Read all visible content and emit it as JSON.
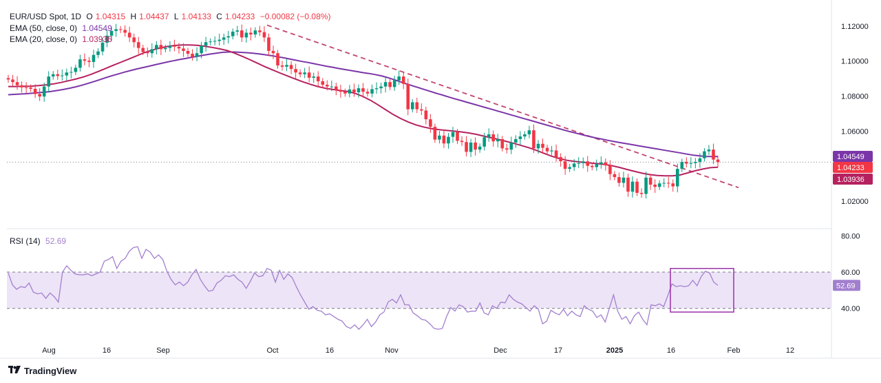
{
  "legend": {
    "symbol": "EUR/USD Spot, 1D",
    "ohlc": {
      "o_label": "O",
      "o": "1.04315",
      "h_label": "H",
      "h": "1.04437",
      "l_label": "L",
      "l": "1.04133",
      "c_label": "C",
      "c": "1.04233",
      "change": "−0.00082 (−0.08%)"
    },
    "ema50_label": "EMA (50, close, 0)",
    "ema50_value": "1.04549",
    "ema20_label": "EMA (20, close, 0)",
    "ema20_value": "1.03936",
    "rsi_label": "RSI (14)",
    "rsi_value": "52.69"
  },
  "colors": {
    "up": "#089981",
    "down": "#f23645",
    "ema50": "#7b35a8",
    "ema20": "#b5215f",
    "trendline": "#c2456b",
    "rsi": "#a27fce",
    "rsi_band": "#ede4f7",
    "box": "#9a2fa8",
    "grid_dotted": "#787b86"
  },
  "footer": {
    "brand": "TradingView"
  },
  "chart_data": [
    {
      "type": "candlestick",
      "title": "EUR/USD Spot, 1D",
      "x_ticks": [
        {
          "label": "Aug",
          "bold": false
        },
        {
          "label": "16",
          "bold": false
        },
        {
          "label": "Sep",
          "bold": false
        },
        {
          "label": "Oct",
          "bold": false
        },
        {
          "label": "16",
          "bold": false
        },
        {
          "label": "Nov",
          "bold": false
        },
        {
          "label": "Dec",
          "bold": false
        },
        {
          "label": "17",
          "bold": false
        },
        {
          "label": "2025",
          "bold": true
        },
        {
          "label": "16",
          "bold": false
        },
        {
          "label": "Feb",
          "bold": false
        },
        {
          "label": "12",
          "bold": false
        }
      ],
      "y_ticks": [
        "1.12000",
        "1.10000",
        "1.08000",
        "1.06000",
        "1.02000"
      ],
      "ylim": [
        1.013,
        1.127
      ],
      "price_tags": [
        {
          "label": "1.04549",
          "value": 1.04549,
          "series": "EMA 50"
        },
        {
          "label": "1.04233",
          "value": 1.04233,
          "series": "Close"
        },
        {
          "label": "1.03936",
          "value": 1.03936,
          "series": "EMA 20"
        }
      ],
      "last_close": 1.04233,
      "closes": [
        1.0895,
        1.088,
        1.0862,
        1.085,
        1.0849,
        1.0842,
        1.0812,
        1.0798,
        1.0855,
        1.0912,
        1.0925,
        1.0915,
        1.0918,
        1.0935,
        1.0938,
        1.0962,
        1.101,
        1.1002,
        1.0995,
        1.1035,
        1.1055,
        1.1105,
        1.1145,
        1.1172,
        1.1182,
        1.1178,
        1.1162,
        1.1135,
        1.1108,
        1.1075,
        1.1052,
        1.1045,
        1.1068,
        1.1092,
        1.1068,
        1.1075,
        1.1088,
        1.1082,
        1.1072,
        1.1058,
        1.1042,
        1.1025,
        1.1045,
        1.1088,
        1.1108,
        1.1112,
        1.1115,
        1.1122,
        1.1135,
        1.1142,
        1.1168,
        1.1175,
        1.1135,
        1.1162,
        1.1152,
        1.1175,
        1.1165,
        1.1135,
        1.1058,
        1.1045,
        1.0975,
        1.0968,
        1.0978,
        1.0955,
        1.0935,
        1.0925,
        1.0935,
        1.0905,
        1.0912,
        1.0885,
        1.0865,
        1.0855,
        1.0855,
        1.0835,
        1.0825,
        1.0815,
        1.0838,
        1.0822,
        1.0845,
        1.0825,
        1.0815,
        1.084,
        1.0845,
        1.0855,
        1.088,
        1.0852,
        1.089,
        1.0912,
        1.087,
        1.0725,
        1.0765,
        1.0725,
        1.0718,
        1.0668,
        1.0625,
        1.0552,
        1.0575,
        1.053,
        1.0568,
        1.0595,
        1.0545,
        1.0538,
        1.0482,
        1.0535,
        1.0495,
        1.0512,
        1.0565,
        1.0582,
        1.0542,
        1.0555,
        1.0502,
        1.0495,
        1.0535,
        1.0555,
        1.057,
        1.0582,
        1.0605,
        1.0502,
        1.0528,
        1.0505,
        1.0485,
        1.049,
        1.0452,
        1.0428,
        1.0385,
        1.0395,
        1.0415,
        1.0418,
        1.0428,
        1.0402,
        1.0395,
        1.0412,
        1.0422,
        1.0405,
        1.0355,
        1.0338,
        1.0305,
        1.0335,
        1.0255,
        1.0312,
        1.0248,
        1.0242,
        1.0335,
        1.0295,
        1.0282,
        1.0302,
        1.0305,
        1.0302,
        1.0285,
        1.0385,
        1.0425,
        1.0415,
        1.0418,
        1.0425,
        1.0445,
        1.0485,
        1.0495,
        1.0438,
        1.04233
      ],
      "ema50": [
        1.0808,
        1.081,
        1.0812,
        1.0814,
        1.0817,
        1.082,
        1.0823,
        1.0827,
        1.0832,
        1.0838,
        1.0845,
        1.0853,
        1.0862,
        1.0872,
        1.0883,
        1.0894,
        1.0906,
        1.0917,
        1.0927,
        1.0937,
        1.0946,
        1.0955,
        1.0963,
        1.0971,
        1.0979,
        1.0987,
        1.0995,
        1.1002,
        1.1009,
        1.1015,
        1.1022,
        1.1028,
        1.1034,
        1.104,
        1.1045,
        1.105,
        1.1052,
        1.1052,
        1.105,
        1.1048,
        1.1045,
        1.1041,
        1.1036,
        1.1031,
        1.1025,
        1.1019,
        1.1012,
        1.1005,
        1.0998,
        1.0992,
        1.0985,
        1.0978,
        1.0971,
        1.0965,
        1.0958,
        1.0952,
        1.0946,
        1.094,
        1.0934,
        1.0929,
        1.0923,
        1.0916,
        1.0906,
        1.0895,
        1.0883,
        1.0871,
        1.086,
        1.0849,
        1.0838,
        1.0827,
        1.0816,
        1.0806,
        1.0795,
        1.0785,
        1.0775,
        1.0765,
        1.0755,
        1.0745,
        1.0735,
        1.0725,
        1.0715,
        1.0705,
        1.0695,
        1.0685,
        1.0675,
        1.0665,
        1.0655,
        1.0645,
        1.0635,
        1.0625,
        1.0615,
        1.0605,
        1.0596,
        1.0587,
        1.0578,
        1.057,
        1.0562,
        1.0555,
        1.0548,
        1.0541,
        1.0535,
        1.0529,
        1.0523,
        1.0517,
        1.0511,
        1.0505,
        1.0499,
        1.0493,
        1.0487,
        1.0481,
        1.0475,
        1.0469,
        1.0463,
        1.0459,
        1.0456,
        1.0455,
        1.0455
      ],
      "ema20": [
        1.0855,
        1.0855,
        1.0856,
        1.0857,
        1.086,
        1.0864,
        1.087,
        1.0878,
        1.0888,
        1.0898,
        1.091,
        1.0925,
        1.0942,
        1.096,
        1.0978,
        1.0995,
        1.1012,
        1.103,
        1.1048,
        1.1062,
        1.1074,
        1.1083,
        1.1089,
        1.1092,
        1.1092,
        1.109,
        1.1085,
        1.1078,
        1.107,
        1.106,
        1.1045,
        1.1027,
        1.1008,
        1.0988,
        1.0968,
        1.095,
        1.0932,
        1.0915,
        1.0898,
        1.0882,
        1.0868,
        1.0855,
        1.0845,
        1.0838,
        1.0832,
        1.0826,
        1.0815,
        1.0798,
        1.0776,
        1.075,
        1.0722,
        1.0695,
        1.0672,
        1.0652,
        1.0636,
        1.0624,
        1.0615,
        1.0609,
        1.0605,
        1.0601,
        1.0596,
        1.059,
        1.0582,
        1.0572,
        1.0562,
        1.0552,
        1.0541,
        1.053,
        1.0518,
        1.0505,
        1.049,
        1.0473,
        1.0457,
        1.0444,
        1.0434,
        1.0428,
        1.0423,
        1.0419,
        1.0415,
        1.041,
        1.0403,
        1.0393,
        1.0381,
        1.037,
        1.036,
        1.0352,
        1.0347,
        1.0345,
        1.0345,
        1.035,
        1.0362,
        1.0374,
        1.0384,
        1.0392,
        1.0394
      ],
      "trendline": [
        {
          "date": "2024-09-30",
          "value": 1.1205
        },
        {
          "date": "2025-02-05",
          "value": 1.0278
        }
      ]
    },
    {
      "type": "line",
      "title": "RSI (14)",
      "y_ticks": [
        "80.00",
        "60.00",
        "40.00"
      ],
      "ylim": [
        27,
        82
      ],
      "band": [
        40,
        60
      ],
      "last_value": 52.69,
      "values": [
        59.5,
        53.0,
        50.5,
        52.0,
        51.5,
        54.0,
        49.0,
        48.0,
        48.5,
        45.5,
        48.5,
        46.5,
        43.5,
        60.0,
        63.5,
        61.0,
        59.0,
        58.5,
        58.5,
        59.0,
        58.0,
        59.0,
        60.0,
        66.0,
        67.0,
        68.5,
        62.0,
        66.0,
        67.5,
        71.5,
        73.5,
        74.0,
        67.5,
        72.5,
        71.0,
        67.5,
        69.5,
        67.0,
        60.5,
        56.0,
        53.0,
        54.5,
        52.5,
        54.5,
        58.5,
        61.5,
        56.0,
        52.5,
        49.5,
        50.0,
        54.0,
        55.5,
        58.0,
        57.5,
        58.5,
        56.0,
        54.5,
        51.0,
        55.0,
        59.5,
        57.5,
        58.0,
        62.0,
        61.0,
        54.5,
        61.0,
        56.0,
        59.0,
        57.0,
        52.0,
        47.5,
        43.5,
        39.5,
        41.0,
        39.0,
        38.5,
        36.5,
        37.0,
        35.5,
        34.0,
        33.0,
        30.0,
        29.0,
        31.0,
        28.5,
        31.0,
        34.0,
        30.0,
        32.5,
        36.5,
        38.0,
        43.5,
        45.0,
        43.0,
        47.5,
        42.0,
        42.0,
        37.5,
        36.0,
        34.0,
        33.5,
        31.5,
        29.0,
        28.5,
        29.0,
        35.5,
        40.5,
        38.5,
        42.0,
        41.0,
        38.0,
        38.5,
        38.5,
        43.0,
        37.5,
        36.5,
        41.5,
        40.0,
        43.5,
        43.0,
        47.5,
        45.0,
        43.5,
        42.5,
        40.5,
        38.5,
        41.5,
        39.5,
        31.5,
        33.0,
        39.0,
        37.5,
        36.5,
        39.5,
        36.0,
        38.5,
        36.5,
        35.5,
        41.5,
        39.5,
        38.5,
        35.0,
        36.5,
        32.5,
        40.0,
        47.5,
        38.5,
        34.0,
        35.5,
        31.5,
        36.0,
        38.0,
        34.0,
        31.0,
        42.0,
        41.5,
        42.5,
        41.0,
        47.0,
        53.5,
        52.0,
        52.5,
        52.0,
        52.5,
        55.5,
        52.5,
        57.5,
        60.5,
        59.5,
        54.5,
        52.69
      ],
      "highlight_box": {
        "y_range": [
          38,
          62
        ]
      }
    }
  ]
}
